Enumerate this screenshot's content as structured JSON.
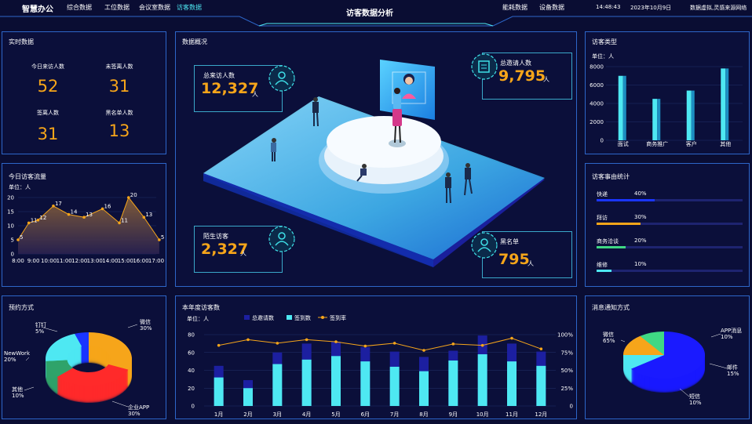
{
  "nav": {
    "brand": "智慧办公",
    "left": [
      "综合数据",
      "工位数据",
      "会议室数据",
      "访客数据"
    ],
    "title": "访客数据分析",
    "right": [
      "能耗数据",
      "设备数据"
    ],
    "time": "14:48:43",
    "date": "2023年10月9日",
    "source": "数据虚拟,灵感来源网络"
  },
  "realtime": {
    "title": "实时数据",
    "items": [
      {
        "label": "今日来访人数",
        "value": "52"
      },
      {
        "label": "未签离人数",
        "value": "31"
      },
      {
        "label": "签离人数",
        "value": "31"
      },
      {
        "label": "黑名单人数",
        "value": "13"
      }
    ]
  },
  "flow": {
    "title": "今日访客流量",
    "unit": "单位：人"
  },
  "overview": {
    "title": "数据概况",
    "cards": [
      {
        "label": "总来访人数",
        "value": "12,327",
        "unit": "人"
      },
      {
        "label": "总邀请人数",
        "value": "9,795",
        "unit": "人"
      },
      {
        "label": "陌生访客",
        "value": "2,327",
        "unit": "人"
      },
      {
        "label": "黑名单",
        "value": "795",
        "unit": "人"
      }
    ]
  },
  "vtype": {
    "title": "访客类型",
    "unit": "单位：人"
  },
  "reason": {
    "title": "访客事由统计",
    "items": [
      {
        "label": "快递",
        "pct": "40%",
        "value": 0.4,
        "color": "#1a35ff"
      },
      {
        "label": "拜访",
        "pct": "30%",
        "value": 0.3,
        "color": "#f6a51a"
      },
      {
        "label": "商务洽谈",
        "pct": "20%",
        "value": 0.2,
        "color": "#3fd884"
      },
      {
        "label": "维修",
        "pct": "10%",
        "value": 0.1,
        "color": "#4ee8f2"
      }
    ]
  },
  "booking": {
    "title": "预约方式"
  },
  "yearly": {
    "title": "本年度访客数",
    "unit": "单位：人",
    "legend": [
      "总邀请数",
      "签到数",
      "签到率"
    ]
  },
  "notify": {
    "title": "消息通知方式"
  },
  "chart_data": [
    {
      "type": "area",
      "title": "今日访客流量",
      "ylabel": "单位：人",
      "categories": [
        "8:00",
        "9:00",
        "10:00",
        "11:00",
        "12:00",
        "13:00",
        "14:00",
        "15:00",
        "16:00",
        "17:00"
      ],
      "x_tick_labels": [
        "8:00",
        "9:00",
        "10:00",
        "11:00",
        "12:00",
        "13:00",
        "14:00",
        "15:00",
        "16:00",
        "17:00"
      ],
      "points": [
        {
          "x": 0,
          "y": 5
        },
        {
          "x": 0.7,
          "y": 11
        },
        {
          "x": 1.3,
          "y": 12
        },
        {
          "x": 2.3,
          "y": 17
        },
        {
          "x": 3.3,
          "y": 14
        },
        {
          "x": 4.3,
          "y": 13
        },
        {
          "x": 5.5,
          "y": 16
        },
        {
          "x": 6.6,
          "y": 11
        },
        {
          "x": 7.2,
          "y": 20
        },
        {
          "x": 8.2,
          "y": 13
        },
        {
          "x": 9.2,
          "y": 5
        }
      ],
      "ylim": [
        0,
        20
      ],
      "yticks": [
        0,
        5,
        10,
        15,
        20
      ],
      "color": "#f6a51a"
    },
    {
      "type": "bar",
      "title": "访客类型",
      "ylabel": "单位：人",
      "categories": [
        "面试",
        "商务推广",
        "客户",
        "其他"
      ],
      "values": [
        7000,
        4500,
        5400,
        7800
      ],
      "ylim": [
        0,
        8000
      ],
      "yticks": [
        0,
        2000,
        4000,
        6000,
        8000
      ]
    },
    {
      "type": "pie",
      "title": "预约方式",
      "slices": [
        {
          "label": "微信",
          "value": 30,
          "pct": "30%",
          "color": "#f6a51a"
        },
        {
          "label": "企业APP",
          "value": 30,
          "pct": "30%",
          "color": "#ff2a2a"
        },
        {
          "label": "其他",
          "value": 10,
          "pct": "10%",
          "color": "#2fa36a"
        },
        {
          "label": "NewWork",
          "value": 20,
          "pct": "20%",
          "color": "#4ee8f2"
        },
        {
          "label": "钉钉",
          "value": 5,
          "pct": "5%",
          "color": "#1a35ff"
        }
      ]
    },
    {
      "type": "bar",
      "title": "本年度访客数",
      "ylabel": "单位：人",
      "categories": [
        "1月",
        "2月",
        "3月",
        "4月",
        "5月",
        "6月",
        "7月",
        "8月",
        "9月",
        "10月",
        "11月",
        "12月"
      ],
      "series": [
        {
          "name": "总邀请数",
          "values": [
            45,
            29,
            60,
            70,
            72,
            66,
            61,
            55,
            62,
            79,
            70,
            61
          ],
          "color": "#1c1fa0"
        },
        {
          "name": "签到数",
          "values": [
            32,
            20,
            47,
            52,
            56,
            50,
            44,
            39,
            51,
            58,
            50,
            45
          ],
          "color": "#4ee8f2"
        },
        {
          "name": "签到率",
          "axis": "right",
          "values": [
            85,
            93,
            88,
            93,
            90,
            84,
            88,
            78,
            87,
            85,
            95,
            80
          ],
          "color": "#f6a51a"
        }
      ],
      "ylim": [
        0,
        80
      ],
      "yticks": [
        0,
        20,
        40,
        60,
        80
      ],
      "y2lim": [
        0,
        100
      ],
      "y2ticks": [
        "0",
        "25%",
        "50%",
        "75%",
        "100%"
      ]
    },
    {
      "type": "pie",
      "title": "消息通知方式",
      "slices": [
        {
          "label": "微信",
          "value": 65,
          "pct": "65%",
          "color": "#1a1aff"
        },
        {
          "label": "APP消息",
          "value": 10,
          "pct": "10%",
          "color": "#4ee8f2"
        },
        {
          "label": "邮件",
          "value": 15,
          "pct": "15%",
          "color": "#f6a51a"
        },
        {
          "label": "短信",
          "value": 10,
          "pct": "10%",
          "color": "#3fd884"
        }
      ]
    }
  ]
}
